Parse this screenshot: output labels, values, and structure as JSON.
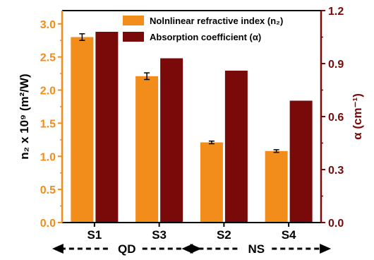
{
  "chart_data": {
    "type": "bar",
    "categories": [
      "S1",
      "S3",
      "S2",
      "S4"
    ],
    "series": [
      {
        "name": "Nolnlinear refractive index (n₂)",
        "axis": "left",
        "color": "#F28C1A",
        "values": [
          2.8,
          2.21,
          1.21,
          1.08
        ],
        "errors": [
          0.05,
          0.05,
          0.02,
          0.02
        ]
      },
      {
        "name": "Absorption coefficient (α)",
        "axis": "right",
        "color": "#7A0A0A",
        "values": [
          1.08,
          0.93,
          0.86,
          0.69
        ]
      }
    ],
    "y_left": {
      "label": "n₂ x 10⁹ (m²/W)",
      "lim": [
        0,
        3.2
      ],
      "ticks": [
        "0.0",
        "0.5",
        "1.0",
        "1.5",
        "2.0",
        "2.5",
        "3.0"
      ]
    },
    "y_right": {
      "label": "α (cm⁻¹)",
      "lim": [
        0,
        1.2
      ],
      "ticks": [
        "0.0",
        "0.3",
        "0.6",
        "0.9",
        "1.2"
      ]
    },
    "groups": [
      {
        "label": "QD",
        "categories": [
          "S1",
          "S3"
        ]
      },
      {
        "label": "NS",
        "categories": [
          "S2",
          "S4"
        ]
      }
    ],
    "legend_position": "top-right",
    "grid": false
  }
}
